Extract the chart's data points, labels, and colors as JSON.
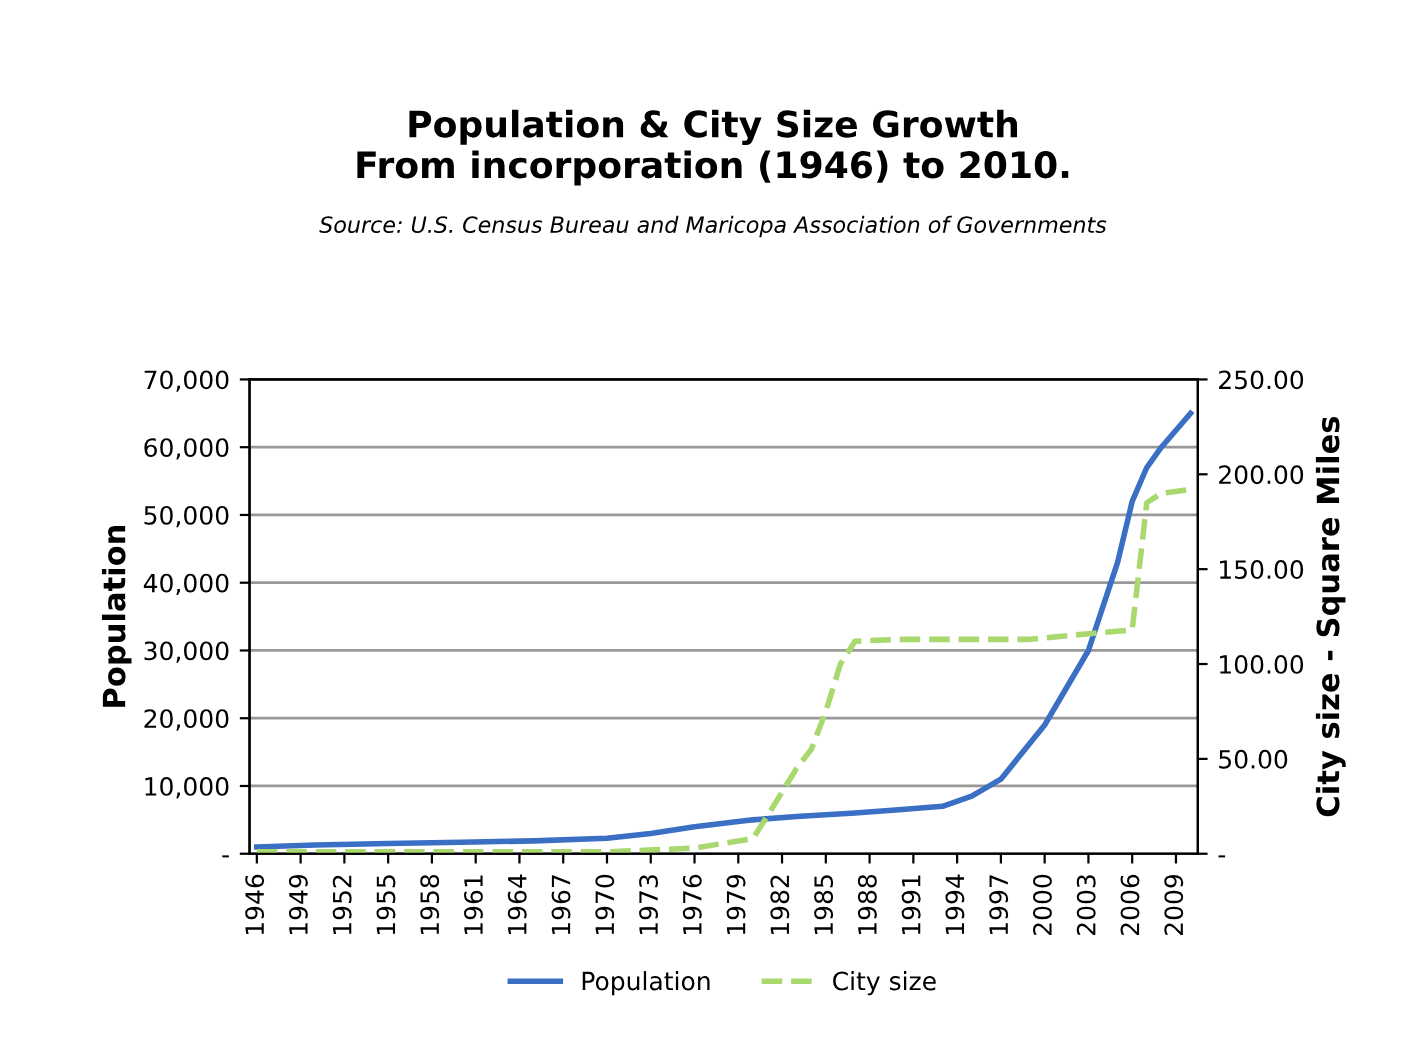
{
  "chart_data": {
    "type": "line",
    "title": "Population & City Size Growth\nFrom incorporation (1946) to 2010.",
    "subtitle": "Source: U.S. Census Bureau and Maricopa Association of Governments",
    "ylabel": "Population",
    "y2label": "City size - Square Miles",
    "xlim": [
      1945.5,
      2010.5
    ],
    "xticks": [
      1946,
      1949,
      1952,
      1955,
      1958,
      1961,
      1964,
      1967,
      1970,
      1973,
      1976,
      1979,
      1982,
      1985,
      1988,
      1991,
      1994,
      1997,
      2000,
      2003,
      2006,
      2009
    ],
    "ylim": [
      0,
      70000
    ],
    "yticks": [
      {
        "value": 0,
        "label": "-"
      },
      {
        "value": 10000,
        "label": "10,000"
      },
      {
        "value": 20000,
        "label": "20,000"
      },
      {
        "value": 30000,
        "label": "30,000"
      },
      {
        "value": 40000,
        "label": "40,000"
      },
      {
        "value": 50000,
        "label": "50,000"
      },
      {
        "value": 60000,
        "label": "60,000"
      },
      {
        "value": 70000,
        "label": "70,000"
      }
    ],
    "y2lim": [
      0,
      250
    ],
    "y2ticks": [
      {
        "value": 0,
        "label": "-"
      },
      {
        "value": 50,
        "label": "50.00"
      },
      {
        "value": 100,
        "label": "100.00"
      },
      {
        "value": 150,
        "label": "150.00"
      },
      {
        "value": 200,
        "label": "200.00"
      },
      {
        "value": 250,
        "label": "250.00"
      }
    ],
    "grid": "y",
    "legend": "bottom",
    "series": [
      {
        "name": "Population",
        "color": "#3a6fc4",
        "line_style": "solid",
        "x": [
          1946,
          1950,
          1955,
          1960,
          1965,
          1970,
          1973,
          1976,
          1980,
          1983,
          1987,
          1990,
          1993,
          1995,
          1997,
          2000,
          2003,
          2005,
          2006,
          2007,
          2008,
          2010
        ],
        "values": [
          1000,
          1300,
          1500,
          1700,
          1900,
          2300,
          3000,
          4000,
          5000,
          5500,
          6000,
          6500,
          7000,
          8500,
          11000,
          19000,
          30000,
          43000,
          52000,
          57000,
          60000,
          65000
        ]
      },
      {
        "name": "City size",
        "color": "#a8d86e",
        "line_style": "dashed",
        "axis": "y2",
        "x": [
          1946,
          1960,
          1970,
          1976,
          1980,
          1981,
          1983,
          1984,
          1985,
          1986,
          1987,
          1990,
          1999,
          2003,
          2006,
          2007,
          2008,
          2010
        ],
        "values": [
          1,
          1,
          1,
          3,
          8,
          20,
          45,
          55,
          75,
          100,
          112,
          113,
          113,
          116,
          118,
          185,
          190,
          192
        ]
      }
    ]
  }
}
